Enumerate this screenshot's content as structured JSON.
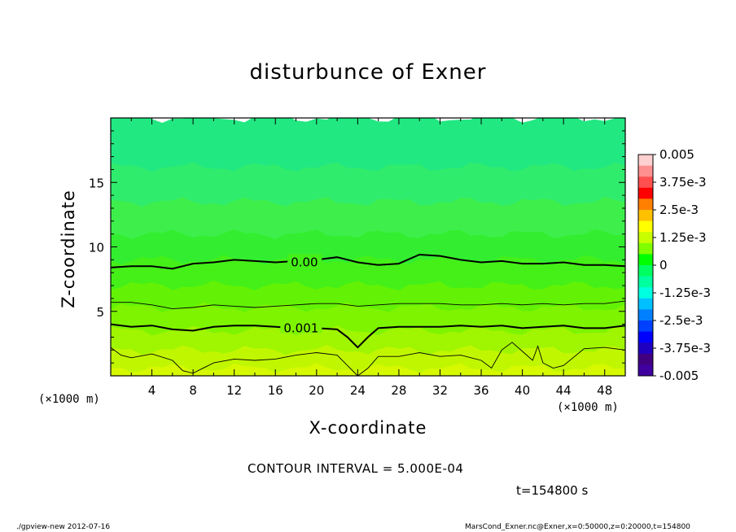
{
  "chart_data": {
    "type": "contour",
    "title": "disturbunce of Exner",
    "xlabel": "X-coordinate",
    "ylabel": "Z-coordinate",
    "xlim": [
      0,
      50
    ],
    "ylim": [
      0,
      20
    ],
    "x_ticks": [
      "4",
      "8",
      "12",
      "16",
      "20",
      "24",
      "28",
      "32",
      "36",
      "40",
      "44",
      "48"
    ],
    "y_ticks": [
      "5",
      "10",
      "15"
    ],
    "x_unit": "(×1000 m)",
    "y_unit": "(×1000 m)",
    "x_unit_right": "(×1000 m)",
    "colorbar": {
      "range": [
        -0.005,
        0.005
      ],
      "step": 0.0005,
      "labels": [
        "0.005",
        "3.75e-3",
        "2.5e-3",
        "1.25e-3",
        "0",
        "-1.25e-3",
        "-2.5e-3",
        "-3.75e-3",
        "-0.005"
      ],
      "colors": [
        "#ff0000",
        "#ff8000",
        "#ffc000",
        "#ffff00",
        "#c8ff00",
        "#80ff00",
        "#00ff00",
        "#00ff60",
        "#00ffa0",
        "#00ffe0",
        "#00c0ff",
        "#0080ff",
        "#0040ff",
        "#0000ff",
        "#2000c0",
        "#400080"
      ]
    },
    "contours": [
      {
        "level": 0.0,
        "label": "0.00",
        "style": "bold",
        "x": [
          0,
          2,
          4,
          6,
          8,
          10,
          12,
          14,
          16,
          18,
          20,
          22,
          24,
          26,
          28,
          30,
          32,
          34,
          36,
          38,
          40,
          42,
          44,
          46,
          48,
          50
        ],
        "z": [
          8.4,
          8.5,
          8.5,
          8.3,
          8.7,
          8.8,
          9.0,
          8.9,
          8.8,
          8.9,
          9.0,
          9.2,
          8.8,
          8.6,
          8.7,
          9.4,
          9.3,
          9.0,
          8.8,
          8.9,
          8.7,
          8.7,
          8.8,
          8.6,
          8.6,
          8.5
        ]
      },
      {
        "level": 0.0005,
        "label": "",
        "style": "thin",
        "x": [
          0,
          2,
          4,
          6,
          8,
          10,
          12,
          14,
          16,
          18,
          20,
          22,
          24,
          26,
          28,
          30,
          32,
          34,
          36,
          38,
          40,
          42,
          44,
          46,
          48,
          50
        ],
        "z": [
          5.7,
          5.7,
          5.5,
          5.2,
          5.3,
          5.5,
          5.4,
          5.3,
          5.4,
          5.5,
          5.6,
          5.6,
          5.4,
          5.5,
          5.6,
          5.6,
          5.6,
          5.5,
          5.5,
          5.6,
          5.5,
          5.6,
          5.5,
          5.6,
          5.6,
          5.8
        ]
      },
      {
        "level": 0.001,
        "label": "0.001",
        "style": "bold",
        "x": [
          0,
          2,
          4,
          6,
          8,
          10,
          12,
          14,
          16,
          18,
          20,
          22,
          23,
          24,
          25,
          26,
          28,
          30,
          32,
          34,
          36,
          38,
          40,
          42,
          44,
          46,
          48,
          50
        ],
        "z": [
          4.0,
          3.8,
          3.9,
          3.6,
          3.5,
          3.8,
          3.9,
          3.9,
          3.8,
          3.7,
          3.7,
          3.6,
          3.0,
          2.2,
          3.0,
          3.7,
          3.8,
          3.8,
          3.8,
          3.9,
          3.8,
          3.9,
          3.7,
          3.8,
          3.9,
          3.7,
          3.7,
          3.9
        ]
      },
      {
        "level": 0.0015,
        "label": "",
        "style": "thin",
        "x": [
          0,
          1,
          2,
          4,
          6,
          7,
          8,
          10,
          12,
          14,
          16,
          18,
          20,
          22,
          23,
          24,
          25,
          26,
          28,
          30,
          32,
          34,
          36,
          37,
          38,
          39,
          40,
          41,
          41.5,
          42,
          43,
          44,
          46,
          48,
          50
        ],
        "z": [
          2.2,
          1.6,
          1.4,
          1.7,
          1.2,
          0.4,
          0.2,
          1.0,
          1.3,
          1.2,
          1.3,
          1.6,
          1.8,
          1.6,
          0.8,
          0.0,
          0.6,
          1.5,
          1.5,
          1.8,
          1.5,
          1.6,
          1.2,
          0.6,
          2.0,
          2.6,
          1.9,
          1.2,
          2.3,
          1.0,
          0.6,
          0.8,
          2.1,
          2.2,
          2.0
        ]
      }
    ],
    "shaded_bands": [
      {
        "z_top": 20.0,
        "value": -0.00075
      },
      {
        "z_top": 16.2,
        "value": -0.0006
      },
      {
        "z_top": 13.5,
        "value": -0.0004
      },
      {
        "z_top": 11.0,
        "value": -0.0002
      },
      {
        "z_top": 9.0,
        "value": 0.0001
      },
      {
        "z_top": 7.0,
        "value": 0.0003
      },
      {
        "z_top": 5.3,
        "value": 0.0006
      },
      {
        "z_top": 3.5,
        "value": 0.0009
      },
      {
        "z_top": 2.0,
        "value": 0.00125
      },
      {
        "z_top": 0.6,
        "value": 0.0016
      }
    ],
    "band_colors": [
      "#22e882",
      "#30ec6c",
      "#3eef4c",
      "#33ee30",
      "#44f018",
      "#63f205",
      "#7ef400",
      "#a0f500",
      "#c0f700",
      "#d6f900"
    ]
  },
  "annotation": {
    "contour_interval": "CONTOUR INTERVAL = 5.000E-04",
    "time": "t=154800 s"
  },
  "footer": {
    "left": "./gpview-new  2012-07-16",
    "right": "MarsCond_Exner.nc@Exner,x=0:50000,z=0:20000,t=154800"
  }
}
